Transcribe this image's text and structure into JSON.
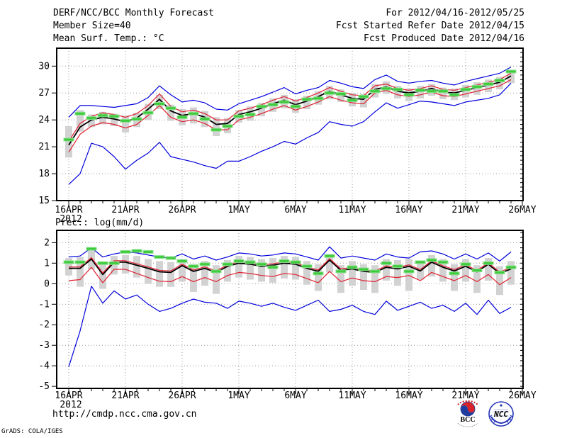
{
  "header": {
    "title": "DERF/NCC/BCC Monthly Forecast",
    "member_size": "Member Size=40",
    "for_range": "For 2012/04/16-2012/05/25",
    "refer_date": "Fcst Started Refer Date 2012/04/15",
    "produced_date": "Fcst Produced Date 2012/04/16"
  },
  "footer": {
    "url": "http://cmdp.ncc.cma.gov.cn",
    "grads_credit": "GrADS: COLA/IGES",
    "logos": [
      {
        "id": "bcc",
        "label": "BCC"
      },
      {
        "id": "ncc",
        "label": "NCC"
      }
    ]
  },
  "colors": {
    "envelope": "#0000dd",
    "quartile": "#e02030",
    "mean": "#000000",
    "observation": "#3ecc3e",
    "observation_edge": "#8fe08f",
    "spread_bar": "#d2d2d2",
    "grid": "#999999",
    "frame": "#000000"
  },
  "chart_data": [
    {
      "type": "line",
      "title": "Mean Surf. Temp.: °C",
      "x_tick_labels": [
        "16APR",
        "21APR",
        "26APR",
        "1MAY",
        "6MAY",
        "11MAY",
        "16MAY",
        "21MAY",
        "26MAY"
      ],
      "x_sub_label": "2012",
      "y_ticks": [
        15,
        18,
        21,
        24,
        27,
        30
      ],
      "grid_ticks": [
        18,
        21,
        24,
        27,
        30
      ],
      "ylim": [
        15,
        32
      ],
      "grid_color": "#999999",
      "series": [
        {
          "name": "ensemble-max",
          "color": "#0000dd",
          "values": [
            24.3,
            25.6,
            25.6,
            25.5,
            25.4,
            25.6,
            25.8,
            26.5,
            27.8,
            26.8,
            26.0,
            26.2,
            25.9,
            25.2,
            25.1,
            25.8,
            26.2,
            26.6,
            27.1,
            27.6,
            26.9,
            27.3,
            27.6,
            28.4,
            28.1,
            27.7,
            27.5,
            28.5,
            29.0,
            28.3,
            28.1,
            28.3,
            28.4,
            28.1,
            27.9,
            28.3,
            28.6,
            28.9,
            29.2,
            29.9
          ]
        },
        {
          "name": "ensemble-min",
          "color": "#0000dd",
          "values": [
            16.8,
            18.0,
            21.4,
            21.0,
            19.9,
            18.5,
            19.5,
            20.3,
            21.5,
            19.9,
            19.6,
            19.3,
            18.9,
            18.6,
            19.4,
            19.4,
            19.9,
            20.5,
            21.0,
            21.6,
            21.3,
            22.0,
            22.6,
            23.8,
            23.5,
            23.3,
            23.8,
            24.9,
            25.9,
            25.3,
            25.7,
            26.1,
            26.0,
            25.8,
            25.6,
            26.0,
            26.2,
            26.4,
            26.8,
            28.1
          ]
        },
        {
          "name": "lower-quartile",
          "color": "#e02030",
          "values": [
            20.4,
            22.4,
            23.3,
            23.7,
            23.5,
            23.1,
            23.5,
            24.5,
            25.6,
            24.3,
            23.8,
            24.0,
            23.6,
            22.9,
            22.9,
            24.0,
            24.3,
            24.7,
            25.2,
            25.6,
            25.1,
            25.5,
            26.0,
            26.6,
            26.2,
            25.9,
            25.8,
            27.0,
            27.3,
            26.8,
            26.6,
            26.8,
            27.1,
            26.7,
            26.6,
            26.9,
            27.2,
            27.5,
            27.8,
            28.5
          ]
        },
        {
          "name": "ensemble-mean",
          "color": "#000000",
          "values": [
            21.2,
            23.2,
            24.0,
            24.3,
            24.1,
            23.8,
            24.2,
            25.2,
            26.3,
            25.0,
            24.5,
            24.7,
            24.3,
            23.5,
            23.6,
            24.6,
            24.9,
            25.3,
            25.8,
            26.2,
            25.7,
            26.1,
            26.6,
            27.2,
            26.8,
            26.4,
            26.3,
            27.4,
            27.7,
            27.2,
            27.0,
            27.2,
            27.5,
            27.1,
            27.0,
            27.3,
            27.6,
            27.9,
            28.2,
            28.9
          ]
        },
        {
          "name": "upper-quartile",
          "color": "#e02030",
          "values": [
            21.6,
            23.6,
            24.4,
            24.8,
            24.6,
            24.3,
            24.7,
            25.6,
            26.9,
            25.5,
            24.9,
            25.1,
            24.7,
            24.0,
            24.0,
            25.0,
            25.3,
            25.7,
            26.2,
            26.6,
            26.1,
            26.5,
            27.0,
            27.6,
            27.2,
            26.8,
            26.7,
            27.8,
            28.0,
            27.5,
            27.3,
            27.5,
            27.8,
            27.4,
            27.3,
            27.6,
            27.9,
            28.2,
            28.5,
            29.2
          ]
        }
      ],
      "bars": {
        "name": "member-spread",
        "color": "#d2d2d2",
        "hi": [
          23.3,
          25.1,
          24.6,
          24.9,
          24.7,
          24.5,
          24.8,
          25.8,
          26.8,
          25.7,
          25.2,
          25.4,
          25.0,
          24.3,
          24.2,
          25.1,
          25.5,
          25.9,
          26.4,
          26.8,
          26.3,
          26.7,
          27.2,
          27.8,
          27.4,
          27.0,
          26.9,
          28.0,
          28.3,
          27.8,
          27.5,
          27.8,
          28.0,
          27.6,
          27.5,
          27.9,
          28.2,
          28.5,
          28.8,
          29.5
        ],
        "lo": [
          19.8,
          22.7,
          23.2,
          23.5,
          23.3,
          22.6,
          23.2,
          24.0,
          25.2,
          23.9,
          23.4,
          23.6,
          23.2,
          22.2,
          22.5,
          23.7,
          23.9,
          24.4,
          24.9,
          25.3,
          24.8,
          25.2,
          25.7,
          26.3,
          26.0,
          25.5,
          25.4,
          26.5,
          26.9,
          26.4,
          26.1,
          26.4,
          26.7,
          26.3,
          26.2,
          26.5,
          26.8,
          27.1,
          27.4,
          28.1
        ]
      },
      "dashes": {
        "name": "observation",
        "color": "#3ecc3e",
        "edge": "#8fe08f",
        "values": [
          21.8,
          24.7,
          24.2,
          24.5,
          24.4,
          23.9,
          24.1,
          24.8,
          25.8,
          25.3,
          24.3,
          24.7,
          24.1,
          22.9,
          23.3,
          24.4,
          24.6,
          25.5,
          25.7,
          26.0,
          25.5,
          26.3,
          26.4,
          27.0,
          26.9,
          26.2,
          26.6,
          27.2,
          27.5,
          27.4,
          26.8,
          27.3,
          27.2,
          27.2,
          26.8,
          27.4,
          27.7,
          28.0,
          28.4,
          29.4
        ]
      }
    },
    {
      "type": "line",
      "title": "Prec.: log(mm/d)",
      "x_tick_labels": [
        "16APR",
        "21APR",
        "26APR",
        "1MAY",
        "6MAY",
        "11MAY",
        "16MAY",
        "21MAY",
        "26MAY"
      ],
      "x_sub_label": "2012",
      "y_ticks": [
        -5,
        -4,
        -3,
        -2,
        -1,
        0,
        1,
        2
      ],
      "grid_ticks": [
        -4,
        -3,
        -2,
        -1,
        0,
        1,
        2
      ],
      "ylim": [
        -5.1,
        2.6
      ],
      "grid_color": "#999999",
      "series": [
        {
          "name": "ensemble-max",
          "color": "#0000dd",
          "values": [
            1.3,
            1.35,
            1.75,
            1.3,
            1.45,
            1.55,
            1.5,
            1.4,
            1.3,
            1.25,
            1.45,
            1.2,
            1.35,
            1.15,
            1.3,
            1.5,
            1.45,
            1.35,
            1.4,
            1.5,
            1.45,
            1.3,
            1.15,
            1.8,
            1.25,
            1.35,
            1.25,
            1.15,
            1.45,
            1.3,
            1.25,
            1.55,
            1.6,
            1.45,
            1.2,
            1.45,
            1.2,
            1.5,
            1.1,
            1.55
          ]
        },
        {
          "name": "ensemble-min",
          "color": "#0000dd",
          "values": [
            -4.05,
            -2.3,
            -0.12,
            -0.95,
            -0.35,
            -0.75,
            -0.55,
            -1.0,
            -1.35,
            -1.2,
            -0.95,
            -0.75,
            -0.9,
            -0.95,
            -1.2,
            -0.85,
            -0.95,
            -1.1,
            -0.95,
            -1.15,
            -1.3,
            -1.05,
            -0.8,
            -1.35,
            -1.25,
            -1.05,
            -1.35,
            -1.5,
            -0.85,
            -1.3,
            -1.1,
            -0.9,
            -1.2,
            -1.05,
            -1.35,
            -0.95,
            -1.5,
            -0.8,
            -1.45,
            -1.15
          ]
        },
        {
          "name": "lower-quartile",
          "color": "#e02030",
          "values": [
            0.15,
            0.2,
            0.8,
            0.05,
            0.7,
            0.7,
            0.5,
            0.3,
            0.12,
            0.1,
            0.35,
            0.1,
            0.3,
            0.1,
            0.4,
            0.55,
            0.5,
            0.4,
            0.35,
            0.5,
            0.45,
            0.25,
            0.05,
            0.6,
            0.1,
            0.28,
            0.15,
            0.1,
            0.35,
            0.3,
            0.4,
            0.15,
            0.55,
            0.35,
            0.15,
            0.4,
            0.1,
            0.45,
            -0.05,
            0.3
          ]
        },
        {
          "name": "ensemble-mean",
          "color": "#000000",
          "values": [
            0.75,
            0.75,
            1.2,
            0.45,
            1.05,
            1.05,
            0.9,
            0.75,
            0.58,
            0.55,
            0.88,
            0.6,
            0.75,
            0.55,
            0.85,
            1.0,
            0.95,
            0.85,
            0.9,
            1.0,
            0.95,
            0.75,
            0.6,
            1.15,
            0.65,
            0.72,
            0.6,
            0.55,
            0.8,
            0.72,
            0.85,
            0.62,
            1.05,
            0.8,
            0.62,
            0.85,
            0.58,
            0.95,
            0.5,
            0.72
          ]
        },
        {
          "name": "upper-quartile",
          "color": "#e02030",
          "values": [
            0.82,
            0.82,
            1.27,
            0.52,
            1.12,
            1.12,
            0.97,
            0.82,
            0.65,
            0.62,
            0.95,
            0.67,
            0.82,
            0.62,
            0.92,
            1.07,
            1.02,
            0.92,
            0.97,
            1.07,
            1.02,
            0.82,
            0.67,
            1.22,
            0.72,
            0.79,
            0.67,
            0.62,
            0.87,
            0.79,
            0.92,
            0.69,
            1.12,
            0.87,
            0.69,
            0.92,
            0.65,
            1.02,
            0.57,
            0.79
          ]
        }
      ],
      "bars": {
        "name": "member-spread",
        "color": "#d2d2d2",
        "hi": [
          1.25,
          1.3,
          1.75,
          1.05,
          1.35,
          1.4,
          1.35,
          1.2,
          1.1,
          1.05,
          1.2,
          0.95,
          1.1,
          0.9,
          1.15,
          1.35,
          1.3,
          1.2,
          1.25,
          1.35,
          1.3,
          1.1,
          0.95,
          1.45,
          0.9,
          1.1,
          0.95,
          0.9,
          1.2,
          1.15,
          1.2,
          1.1,
          1.4,
          1.2,
          0.95,
          1.2,
          0.9,
          1.25,
          0.85,
          1.1
        ],
        "lo": [
          0.4,
          -0.15,
          0.7,
          -0.25,
          0.45,
          0.5,
          0.3,
          0.0,
          -0.15,
          -0.15,
          0.1,
          -0.4,
          -0.1,
          -0.5,
          0.1,
          0.3,
          0.2,
          0.1,
          0.05,
          0.25,
          0.2,
          -0.05,
          -0.35,
          0.55,
          -0.45,
          -0.1,
          -0.3,
          -0.45,
          0.15,
          -0.1,
          -0.35,
          0.2,
          0.35,
          0.1,
          -0.35,
          0.1,
          -0.45,
          0.15,
          -0.55,
          -0.05
        ]
      },
      "dashes": {
        "name": "observation",
        "color": "#3ecc3e",
        "edge": "#8fe08f",
        "values": [
          1.05,
          1.05,
          1.7,
          1.0,
          1.0,
          1.55,
          1.6,
          1.55,
          1.3,
          1.25,
          1.1,
          0.85,
          0.95,
          0.6,
          0.95,
          1.1,
          1.05,
          0.95,
          0.8,
          1.1,
          1.05,
          0.85,
          0.5,
          1.35,
          0.6,
          0.8,
          0.7,
          0.6,
          1.0,
          0.85,
          0.6,
          1.05,
          1.15,
          1.05,
          0.5,
          0.95,
          0.65,
          1.0,
          0.55,
          0.8
        ]
      }
    }
  ]
}
